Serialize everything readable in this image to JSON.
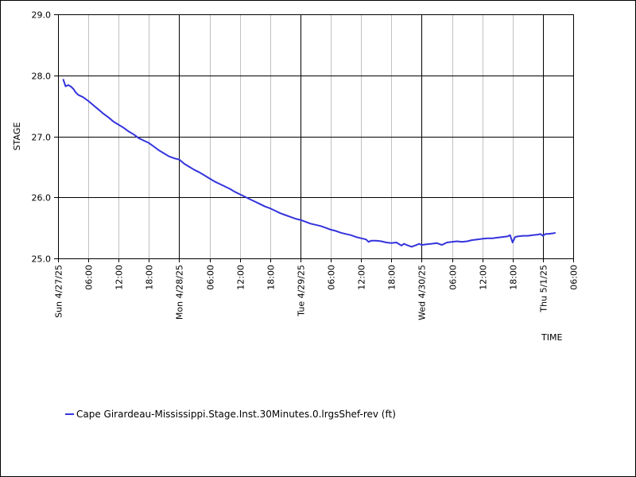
{
  "chart_data": {
    "type": "line",
    "ylabel": "STAGE",
    "xlabel": "TIME",
    "ylim": [
      25.0,
      29.0
    ],
    "y_ticks": [
      "25.0",
      "26.0",
      "27.0",
      "28.0",
      "29.0"
    ],
    "y_tick_values": [
      25.0,
      26.0,
      27.0,
      28.0,
      29.0
    ],
    "xlim_hours": [
      0,
      102
    ],
    "x_ticks": [
      {
        "h": 0,
        "label": "Sun 4/27/25",
        "major": true
      },
      {
        "h": 6,
        "label": "06:00",
        "major": false
      },
      {
        "h": 12,
        "label": "12:00",
        "major": false
      },
      {
        "h": 18,
        "label": "18:00",
        "major": false
      },
      {
        "h": 24,
        "label": "Mon 4/28/25",
        "major": true
      },
      {
        "h": 30,
        "label": "06:00",
        "major": false
      },
      {
        "h": 36,
        "label": "12:00",
        "major": false
      },
      {
        "h": 42,
        "label": "18:00",
        "major": false
      },
      {
        "h": 48,
        "label": "Tue 4/29/25",
        "major": true
      },
      {
        "h": 54,
        "label": "06:00",
        "major": false
      },
      {
        "h": 60,
        "label": "12:00",
        "major": false
      },
      {
        "h": 66,
        "label": "18:00",
        "major": false
      },
      {
        "h": 72,
        "label": "Wed 4/30/25",
        "major": true
      },
      {
        "h": 78,
        "label": "06:00",
        "major": false
      },
      {
        "h": 84,
        "label": "12:00",
        "major": false
      },
      {
        "h": 90,
        "label": "18:00",
        "major": false
      },
      {
        "h": 96,
        "label": "Thu 5/1/25",
        "major": true
      },
      {
        "h": 102,
        "label": "06:00",
        "major": false
      }
    ],
    "grid": true,
    "legend_position": "bottom-left",
    "series": [
      {
        "name": "Cape Girardeau-Mississippi.Stage.Inst.30Minutes.0.lrgsShef-rev (ft)",
        "color": "#3333dd",
        "points": [
          [
            1.0,
            27.94
          ],
          [
            1.5,
            27.82
          ],
          [
            2.0,
            27.84
          ],
          [
            2.5,
            27.82
          ],
          [
            3.0,
            27.78
          ],
          [
            3.5,
            27.72
          ],
          [
            4.0,
            27.68
          ],
          [
            5.0,
            27.64
          ],
          [
            6.0,
            27.58
          ],
          [
            7.0,
            27.51
          ],
          [
            8.0,
            27.44
          ],
          [
            9.0,
            27.37
          ],
          [
            10.0,
            27.31
          ],
          [
            11.0,
            27.24
          ],
          [
            12.0,
            27.19
          ],
          [
            13.0,
            27.14
          ],
          [
            14.0,
            27.08
          ],
          [
            15.0,
            27.03
          ],
          [
            16.0,
            26.97
          ],
          [
            17.0,
            26.93
          ],
          [
            18.0,
            26.89
          ],
          [
            19.0,
            26.83
          ],
          [
            20.0,
            26.77
          ],
          [
            21.0,
            26.72
          ],
          [
            22.0,
            26.67
          ],
          [
            23.0,
            26.64
          ],
          [
            24.0,
            26.62
          ],
          [
            25.0,
            26.55
          ],
          [
            26.0,
            26.5
          ],
          [
            27.0,
            26.45
          ],
          [
            28.0,
            26.41
          ],
          [
            29.0,
            26.36
          ],
          [
            30.0,
            26.31
          ],
          [
            31.0,
            26.26
          ],
          [
            32.0,
            26.22
          ],
          [
            33.0,
            26.18
          ],
          [
            34.0,
            26.14
          ],
          [
            35.0,
            26.09
          ],
          [
            36.0,
            26.05
          ],
          [
            37.0,
            26.01
          ],
          [
            38.0,
            25.97
          ],
          [
            39.0,
            25.93
          ],
          [
            40.0,
            25.89
          ],
          [
            41.0,
            25.85
          ],
          [
            42.0,
            25.82
          ],
          [
            43.0,
            25.78
          ],
          [
            44.0,
            25.74
          ],
          [
            45.0,
            25.71
          ],
          [
            46.0,
            25.68
          ],
          [
            47.0,
            25.65
          ],
          [
            48.0,
            25.63
          ],
          [
            49.0,
            25.6
          ],
          [
            50.0,
            25.57
          ],
          [
            51.0,
            25.55
          ],
          [
            52.0,
            25.53
          ],
          [
            53.0,
            25.5
          ],
          [
            54.0,
            25.47
          ],
          [
            55.0,
            25.45
          ],
          [
            56.0,
            25.42
          ],
          [
            57.0,
            25.4
          ],
          [
            58.0,
            25.38
          ],
          [
            59.0,
            25.35
          ],
          [
            60.0,
            25.33
          ],
          [
            61.0,
            25.31
          ],
          [
            61.5,
            25.27
          ],
          [
            62.0,
            25.29
          ],
          [
            63.0,
            25.29
          ],
          [
            64.0,
            25.28
          ],
          [
            65.0,
            25.26
          ],
          [
            66.0,
            25.25
          ],
          [
            67.0,
            25.26
          ],
          [
            68.0,
            25.21
          ],
          [
            68.5,
            25.24
          ],
          [
            69.0,
            25.22
          ],
          [
            70.0,
            25.19
          ],
          [
            71.0,
            25.22
          ],
          [
            71.5,
            25.24
          ],
          [
            72.0,
            25.22
          ],
          [
            73.0,
            25.23
          ],
          [
            74.0,
            25.24
          ],
          [
            75.0,
            25.25
          ],
          [
            76.0,
            25.22
          ],
          [
            77.0,
            25.26
          ],
          [
            78.0,
            25.27
          ],
          [
            79.0,
            25.28
          ],
          [
            80.0,
            25.27
          ],
          [
            81.0,
            25.28
          ],
          [
            82.0,
            25.3
          ],
          [
            83.0,
            25.31
          ],
          [
            84.0,
            25.32
          ],
          [
            85.0,
            25.33
          ],
          [
            86.0,
            25.33
          ],
          [
            87.0,
            25.34
          ],
          [
            88.0,
            25.35
          ],
          [
            89.0,
            25.36
          ],
          [
            89.5,
            25.38
          ],
          [
            90.0,
            25.26
          ],
          [
            90.5,
            25.35
          ],
          [
            91.0,
            25.36
          ],
          [
            92.0,
            25.37
          ],
          [
            93.0,
            25.37
          ],
          [
            94.0,
            25.38
          ],
          [
            95.0,
            25.39
          ],
          [
            95.5,
            25.4
          ],
          [
            96.0,
            25.37
          ],
          [
            96.5,
            25.4
          ],
          [
            97.0,
            25.4
          ],
          [
            98.0,
            25.41
          ],
          [
            98.5,
            25.42
          ]
        ]
      }
    ]
  }
}
